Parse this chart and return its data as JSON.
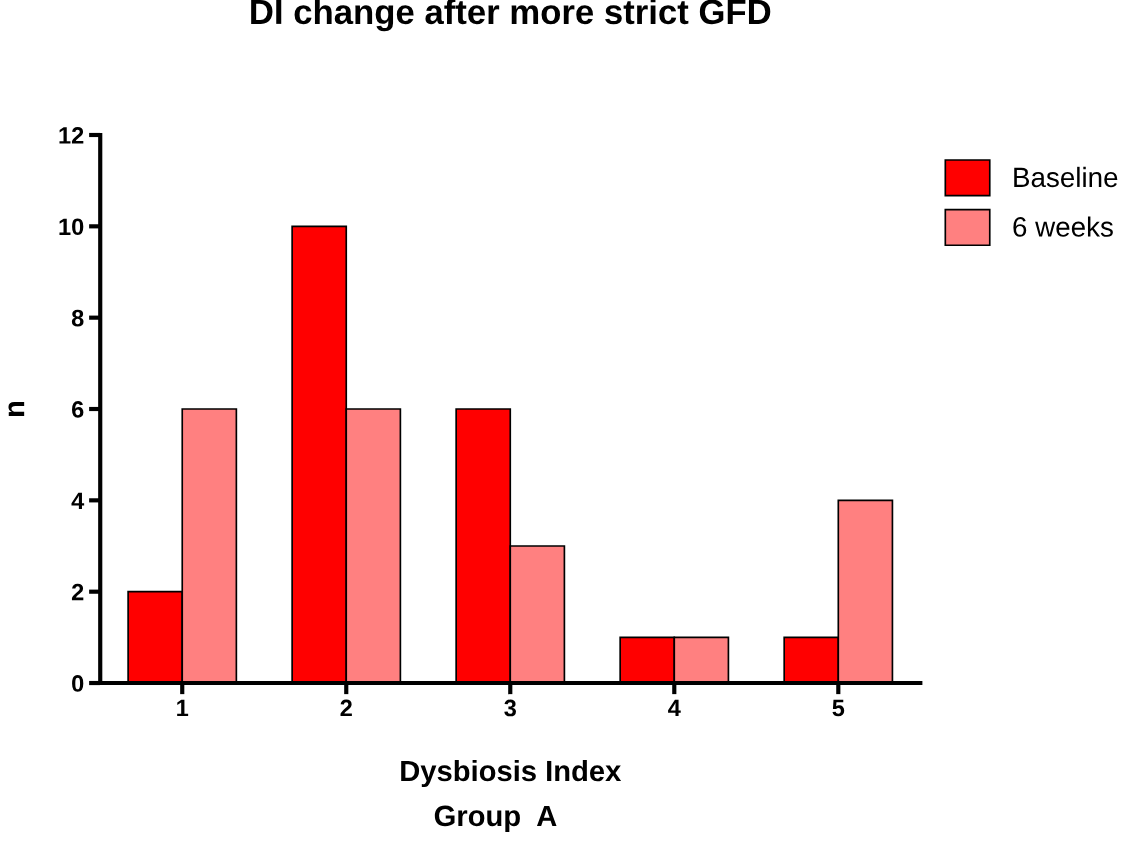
{
  "chart_data": {
    "type": "bar",
    "title": "DI change after more strict GFD",
    "xlabel": "Dysbiosis Index",
    "ylabel": "n",
    "annotations": [
      "Group  A"
    ],
    "categories": [
      "1",
      "2",
      "3",
      "4",
      "5"
    ],
    "series": [
      {
        "name": "Baseline",
        "color": "#ff0000",
        "values": [
          2,
          10,
          6,
          1,
          1
        ]
      },
      {
        "name": "6 weeks",
        "color": "#ff8080",
        "values": [
          6,
          6,
          3,
          1,
          4
        ]
      }
    ],
    "ylim": [
      0,
      12
    ],
    "yticks": [
      0,
      2,
      4,
      6,
      8,
      10,
      12
    ],
    "grid": false,
    "legend": "top right"
  }
}
